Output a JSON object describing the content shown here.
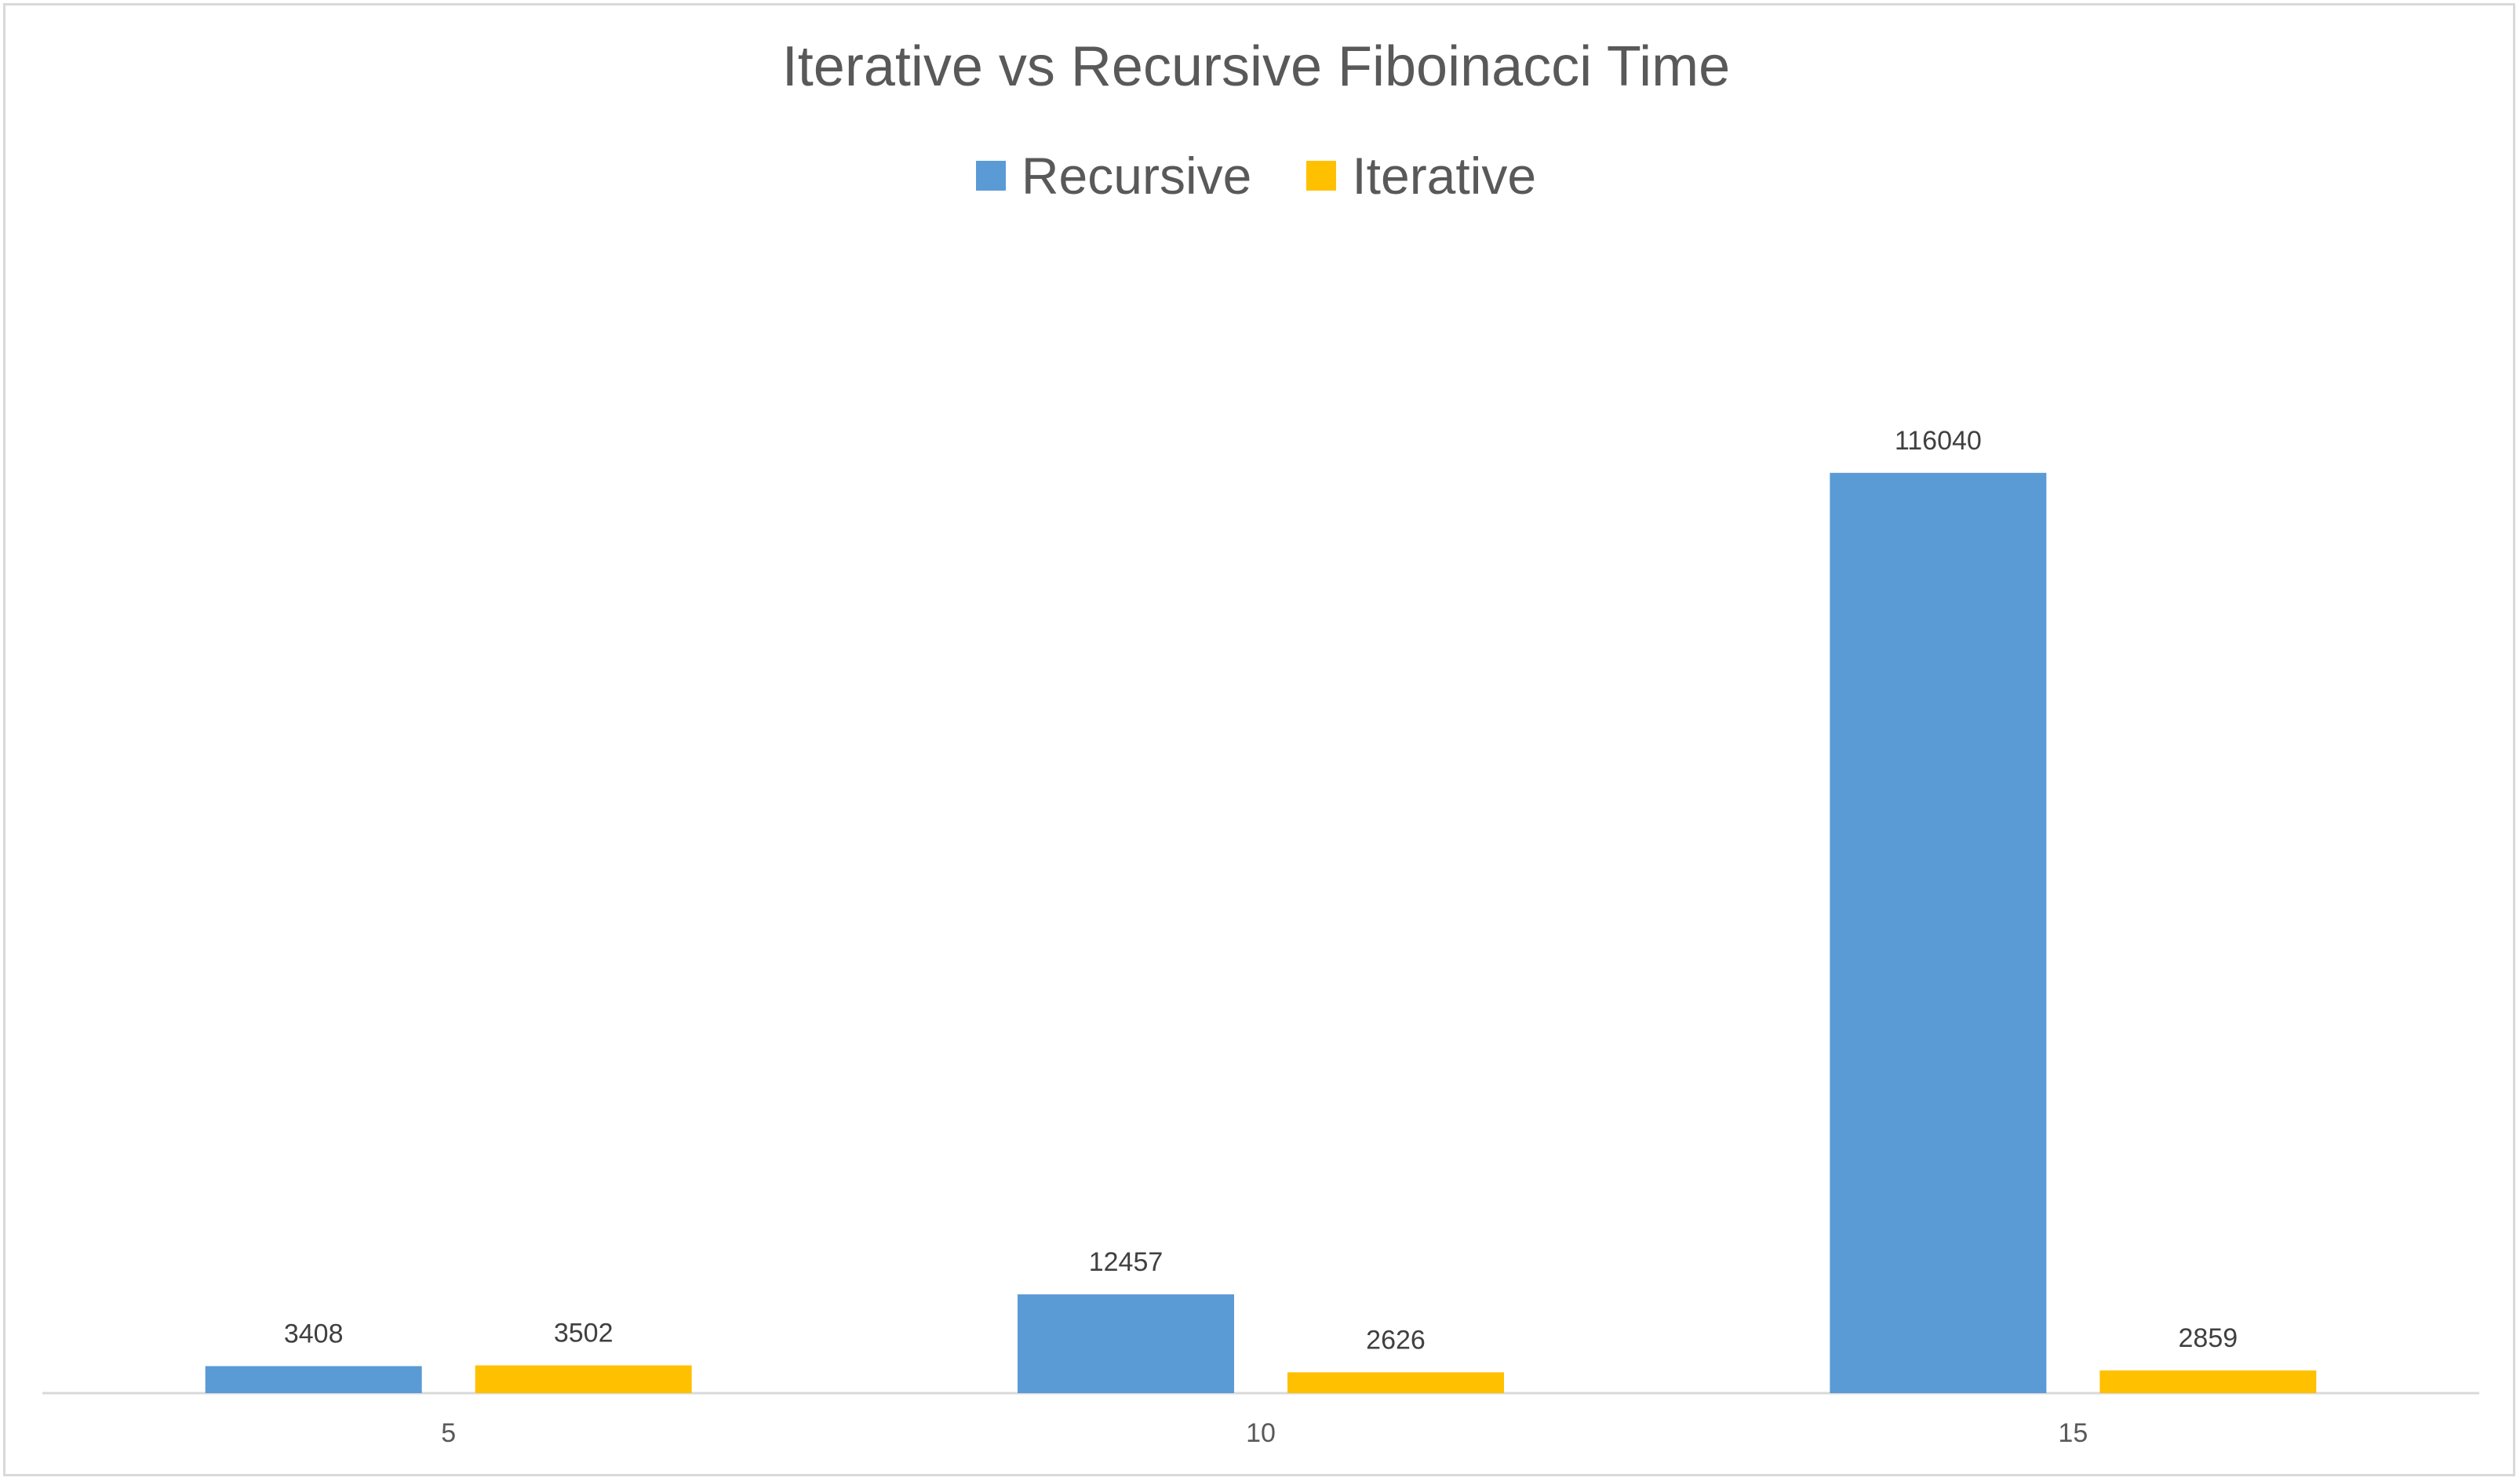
{
  "chart_data": {
    "type": "bar",
    "title": "Iterative vs Recursive Fiboinacci Time",
    "xlabel": "",
    "ylabel": "",
    "categories": [
      "5",
      "10",
      "15"
    ],
    "series": [
      {
        "name": "Recursive",
        "color": "#5b9bd5",
        "values": [
          3408,
          12457,
          116040
        ]
      },
      {
        "name": "Iterative",
        "color": "#ffc000",
        "values": [
          3502,
          2626,
          2859
        ]
      }
    ],
    "ylim": [
      0,
      145000
    ],
    "grid": false,
    "legend_position": "top",
    "data_labels": true
  }
}
